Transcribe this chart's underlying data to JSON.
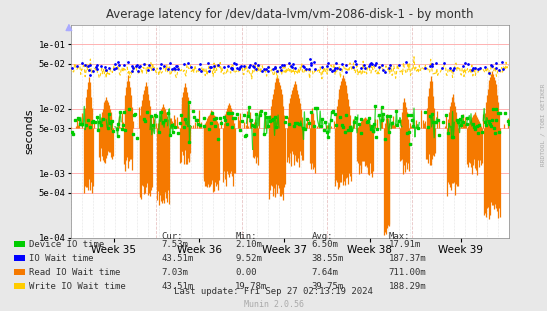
{
  "title": "Average latency for /dev/data-lvm/vm-2086-disk-1 - by month",
  "ylabel": "seconds",
  "background_color": "#e8e8e8",
  "plot_bg_color": "#ffffff",
  "grid_color": "#cccccc",
  "x_tick_labels": [
    "Week 35",
    "Week 36",
    "Week 37",
    "Week 38",
    "Week 39"
  ],
  "legend_entries": [
    {
      "label": "Device IO time",
      "color": "#00cc00"
    },
    {
      "label": "IO Wait time",
      "color": "#0000ff"
    },
    {
      "label": "Read IO Wait time",
      "color": "#f57900"
    },
    {
      "label": "Write IO Wait time",
      "color": "#ffcc00"
    }
  ],
  "table_headers": [
    "Cur:",
    "Min:",
    "Avg:",
    "Max:"
  ],
  "table_rows": [
    [
      "Device IO time",
      "7.53m",
      "2.10m",
      "6.50m",
      "17.91m"
    ],
    [
      "IO Wait time",
      "43.51m",
      "9.52m",
      "38.55m",
      "187.37m"
    ],
    [
      "Read IO Wait time",
      "7.03m",
      "0.00",
      "7.64m",
      "711.00m"
    ],
    [
      "Write IO Wait time",
      "43.51m",
      "19.78m",
      "39.75m",
      "188.29m"
    ]
  ],
  "last_update": "Last update: Fri Sep 27 02:13:19 2024",
  "munin_text": "Munin 2.0.56",
  "rrdtool_text": "RRDTOOL / TOBI OETIKER",
  "yticks": [
    0.0001,
    0.0005,
    0.001,
    0.005,
    0.01,
    0.05,
    0.1
  ],
  "ytick_labels": [
    "1e-04",
    "5e-04",
    "1e-03",
    "5e-03",
    "1e-02",
    "5e-02",
    "1e-01"
  ],
  "hline_color": "#ffaaaa",
  "vline_color": "#ddaaaa",
  "dotgrid_color": "#cccccc"
}
